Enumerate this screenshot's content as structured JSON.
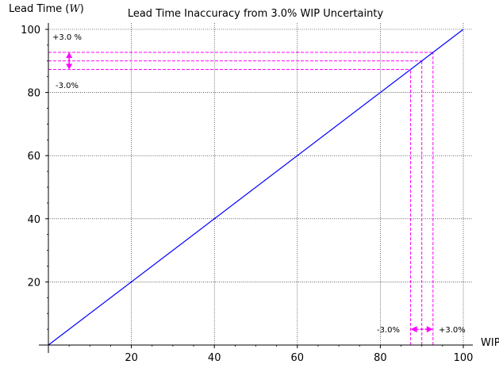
{
  "colors": {
    "line": "#0000ff",
    "annotation": "#ff00ff",
    "grid": "#000000",
    "axis": "#000000"
  },
  "chart_data": {
    "type": "line",
    "title": "Lead Time Inaccuracy from 3.0% WIP Uncertainty",
    "xlabel": "WIP",
    "ylabel": "Lead Time (W)",
    "ylabel_prefix": "Lead Time (",
    "ylabel_symbol": "W",
    "ylabel_suffix": ")",
    "xlim": [
      0,
      100
    ],
    "ylim": [
      0,
      100
    ],
    "grid": true,
    "x_ticks": [
      20,
      40,
      60,
      80,
      100
    ],
    "y_ticks": [
      20,
      40,
      60,
      80,
      100
    ],
    "x_tick_labels": [
      "20",
      "40",
      "60",
      "80",
      "100"
    ],
    "y_tick_labels": [
      "20",
      "40",
      "60",
      "80",
      "100"
    ],
    "series": [
      {
        "name": "Lead Time",
        "x": [
          0,
          100
        ],
        "y": [
          0,
          100
        ]
      }
    ],
    "nominal_wip": 90,
    "uncertainty_pct": 3.0,
    "low_value": 87.3,
    "high_value": 92.7,
    "annotations": {
      "y_plus": "+3.0 %",
      "y_minus": "-3.0%",
      "x_minus": "-3.0%",
      "x_plus": "+3.0%"
    },
    "arrow_positions": {
      "y_arrow_x": 5,
      "x_arrow_y": 5
    }
  }
}
